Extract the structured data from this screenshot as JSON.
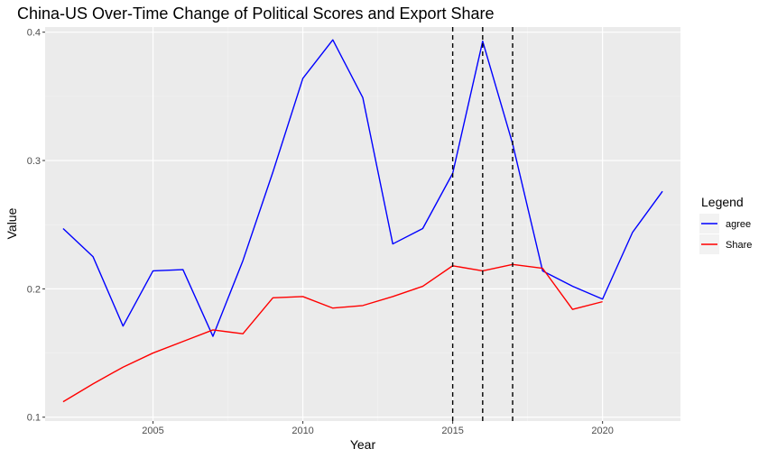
{
  "chart_data": {
    "type": "line",
    "title": "China-US Over-Time Change of Political Scores and Export Share",
    "xlabel": "Year",
    "ylabel": "Value",
    "xlim": [
      2001.4,
      2022.6
    ],
    "ylim": [
      0.097,
      0.404
    ],
    "x_ticks": [
      2005,
      2010,
      2015,
      2020
    ],
    "x_tick_labels": [
      "2005",
      "2010",
      "2015",
      "2020"
    ],
    "y_ticks": [
      0.1,
      0.2,
      0.3,
      0.4
    ],
    "y_tick_labels": [
      "0.1",
      "0.2",
      "0.3",
      "0.4"
    ],
    "grid": true,
    "legend": {
      "title": "Legend",
      "position": "right"
    },
    "vlines": [
      2015,
      2016,
      2017
    ],
    "series": [
      {
        "name": "agree",
        "color": "#0000ff",
        "x": [
          2002,
          2003,
          2004,
          2005,
          2006,
          2007,
          2008,
          2009,
          2010,
          2011,
          2012,
          2013,
          2014,
          2015,
          2016,
          2017,
          2018,
          2019,
          2020,
          2021,
          2022
        ],
        "values": [
          0.247,
          0.225,
          0.171,
          0.214,
          0.215,
          0.163,
          0.222,
          0.291,
          0.364,
          0.394,
          0.349,
          0.235,
          0.247,
          0.29,
          0.393,
          0.313,
          0.214,
          0.202,
          0.192,
          0.244,
          0.276
        ]
      },
      {
        "name": "Share",
        "color": "#ff0000",
        "x": [
          2002,
          2003,
          2004,
          2005,
          2006,
          2007,
          2008,
          2009,
          2010,
          2011,
          2012,
          2013,
          2014,
          2015,
          2016,
          2017,
          2018,
          2019,
          2020
        ],
        "values": [
          0.112,
          0.126,
          0.139,
          0.15,
          0.159,
          0.168,
          0.165,
          0.193,
          0.194,
          0.185,
          0.187,
          0.194,
          0.202,
          0.218,
          0.214,
          0.219,
          0.216,
          0.184,
          0.19
        ]
      }
    ]
  }
}
